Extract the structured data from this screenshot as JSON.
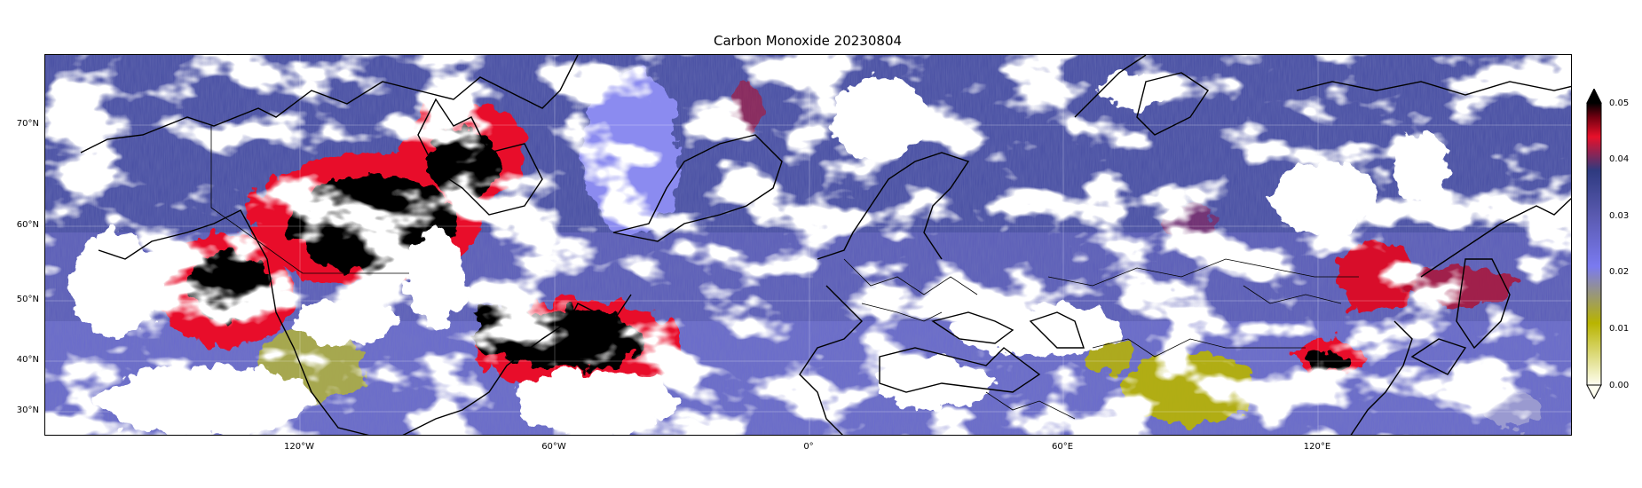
{
  "title": "Carbon Monoxide 20230804",
  "lat_ticks": [
    "70°N",
    "60°N",
    "50°N",
    "40°N",
    "30°N"
  ],
  "lon_ticks": [
    "120°W",
    "60°W",
    "0°",
    "60°E",
    "120°E"
  ],
  "colorbar": {
    "ticks": [
      "0.05",
      "0.04",
      "0.03",
      "0.02",
      "0.01",
      "0.00"
    ],
    "colors": {
      "low": "#fefef0",
      "olive": "#b8b400",
      "light_blue": "#7a7af0",
      "mid_blue": "#5a5ab0",
      "dark_blue": "#2e3a80",
      "red": "#e8102a",
      "dark_red": "#700010",
      "black": "#000000"
    }
  },
  "map": {
    "projection": "PlateCarree",
    "extent_lon": [
      -180,
      180
    ],
    "extent_lat": [
      26,
      78
    ],
    "field": "carbon_monoxide",
    "date": "20230804"
  }
}
